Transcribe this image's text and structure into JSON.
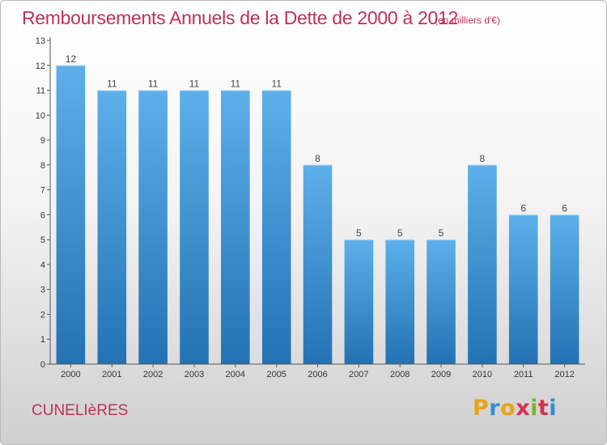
{
  "header": {
    "title": "Remboursements Annuels de la Dette de 2000 à 2012",
    "subtitle": "(en milliers d'€)"
  },
  "footer": {
    "commune": "CUNELIèRES",
    "logo_letters": [
      "P",
      "r",
      "o",
      "x",
      "i",
      "t",
      "i"
    ],
    "logo_colors": [
      "#e8a317",
      "#2f8fd3",
      "#e8a317",
      "#d9304f",
      "#7ab52f",
      "#d9304f",
      "#2f8fd3"
    ]
  },
  "chart_data": {
    "type": "bar",
    "categories": [
      "2000",
      "2001",
      "2002",
      "2003",
      "2004",
      "2005",
      "2006",
      "2007",
      "2008",
      "2009",
      "2010",
      "2011",
      "2012"
    ],
    "values": [
      12,
      11,
      11,
      11,
      11,
      11,
      8,
      5,
      5,
      5,
      8,
      6,
      6
    ],
    "title": "Remboursements Annuels de la Dette de 2000 à 2012",
    "xlabel": "",
    "ylabel": "",
    "ylim": [
      0,
      13
    ],
    "yticks": [
      0,
      1,
      2,
      3,
      4,
      5,
      6,
      7,
      8,
      9,
      10,
      11,
      12,
      13
    ],
    "grid": false,
    "bar_color": "#4a9fdf"
  }
}
